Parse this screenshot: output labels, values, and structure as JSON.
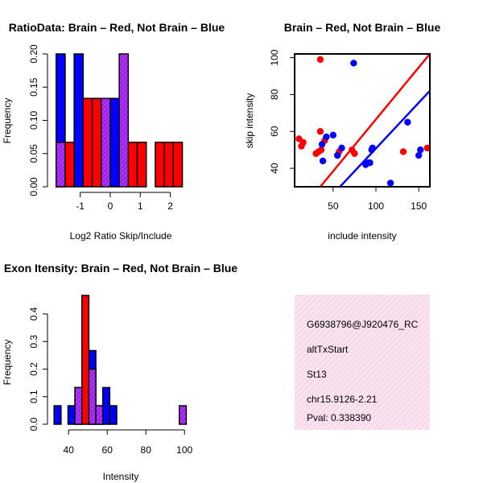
{
  "colors": {
    "red": "#ff0000",
    "blue": "#0000ff",
    "purple": "#a020f0",
    "pink_bg": "#f7d9ec",
    "pval": "#8b0000"
  },
  "chart_data": [
    {
      "type": "bar",
      "title": "RatioData: Brain – Red, Not Brain – Blue",
      "xlabel": "Log2 Ratio Skip/Include",
      "ylabel": "Frequency",
      "xlim": [
        -1.9,
        2.6
      ],
      "ylim": [
        0,
        0.2
      ],
      "xticks": [
        "-1",
        "0",
        "1",
        "2"
      ],
      "yticks": [
        "0.00",
        "0.05",
        "0.10",
        "0.15",
        "0.20"
      ],
      "bin_width": 0.3,
      "series": [
        {
          "name": "Not Brain",
          "color": "blue",
          "bins": [
            [
              -1.8,
              0.2
            ],
            [
              -1.2,
              0.2
            ],
            [
              0.0,
              0.133
            ]
          ]
        },
        {
          "name": "Brain",
          "color": "red",
          "bins": [
            [
              -1.5,
              0.067
            ],
            [
              -0.9,
              0.133
            ],
            [
              -0.6,
              0.133
            ],
            [
              0.6,
              0.067
            ],
            [
              0.9,
              0.067
            ],
            [
              1.5,
              0.067
            ],
            [
              1.8,
              0.067
            ],
            [
              2.1,
              0.067
            ]
          ]
        },
        {
          "name": "Overlap",
          "color": "purple",
          "bins": [
            [
              -1.8,
              0.067
            ],
            [
              -0.3,
              0.133
            ],
            [
              0.3,
              0.2
            ]
          ]
        }
      ]
    },
    {
      "type": "scatter",
      "title": "Brain – Red, Not Brain – Blue",
      "xlabel": "include intensity",
      "ylabel": "skip intensity",
      "xlim": [
        5,
        163
      ],
      "ylim": [
        30,
        102
      ],
      "xticks": [
        "50",
        "100",
        "150"
      ],
      "yticks": [
        "40",
        "60",
        "80",
        "100"
      ],
      "series": [
        {
          "name": "Brain",
          "color": "red",
          "points": [
            [
              35,
              99
            ],
            [
              10,
              56
            ],
            [
              13,
              52
            ],
            [
              15,
              54
            ],
            [
              30,
              48
            ],
            [
              33,
              49
            ],
            [
              35,
              60
            ],
            [
              40,
              55
            ],
            [
              36,
              50
            ],
            [
              55,
              47
            ],
            [
              57,
              49
            ],
            [
              72,
              50
            ],
            [
              75,
              48
            ],
            [
              132,
              49
            ],
            [
              160,
              51
            ]
          ],
          "fit": [
            [
              35,
              30
            ],
            [
              163,
              102
            ]
          ]
        },
        {
          "name": "Not Brain",
          "color": "blue",
          "points": [
            [
              74,
              97
            ],
            [
              38,
              44
            ],
            [
              37,
              53
            ],
            [
              42,
              57
            ],
            [
              50,
              58
            ],
            [
              55,
              47
            ],
            [
              60,
              51
            ],
            [
              88,
              42
            ],
            [
              91,
              43
            ],
            [
              93,
              43
            ],
            [
              95,
              50
            ],
            [
              96,
              51
            ],
            [
              117,
              32
            ],
            [
              137,
              65
            ],
            [
              150,
              47
            ],
            [
              152,
              50
            ]
          ],
          "fit": [
            [
              58,
              30
            ],
            [
              163,
              82
            ]
          ]
        }
      ]
    },
    {
      "type": "bar",
      "title": "Exon Itensity: Brain – Red, Not Brain – Blue",
      "xlabel": "Intensity",
      "ylabel": "Frequency",
      "xlim": [
        32,
        102
      ],
      "ylim": [
        0,
        0.47
      ],
      "xticks": [
        "40",
        "60",
        "80",
        "100"
      ],
      "yticks": [
        "0.0",
        "0.1",
        "0.2",
        "0.3",
        "0.4"
      ],
      "bin_width": 3.6,
      "series": [
        {
          "name": "Not Brain",
          "color": "blue",
          "bins": [
            [
              32.5,
              0.067
            ],
            [
              39.7,
              0.067
            ],
            [
              43.3,
              0.133
            ],
            [
              50.5,
              0.267
            ],
            [
              57.7,
              0.133
            ],
            [
              61.3,
              0.067
            ]
          ]
        },
        {
          "name": "Brain",
          "color": "red",
          "bins": [
            [
              46.9,
              0.467
            ],
            [
              54.1,
              0.067
            ]
          ]
        },
        {
          "name": "Overlap",
          "color": "purple",
          "bins": [
            [
              43.3,
              0.133
            ],
            [
              50.5,
              0.2
            ],
            [
              54.1,
              0.067
            ],
            [
              97.3,
              0.067
            ]
          ]
        }
      ]
    }
  ],
  "info_box": {
    "lines": [
      "G6938796@J920476_RC",
      "altTxStart",
      "St13",
      "chr15.9126-2.21"
    ],
    "pval": "Pval: 0.338390"
  }
}
